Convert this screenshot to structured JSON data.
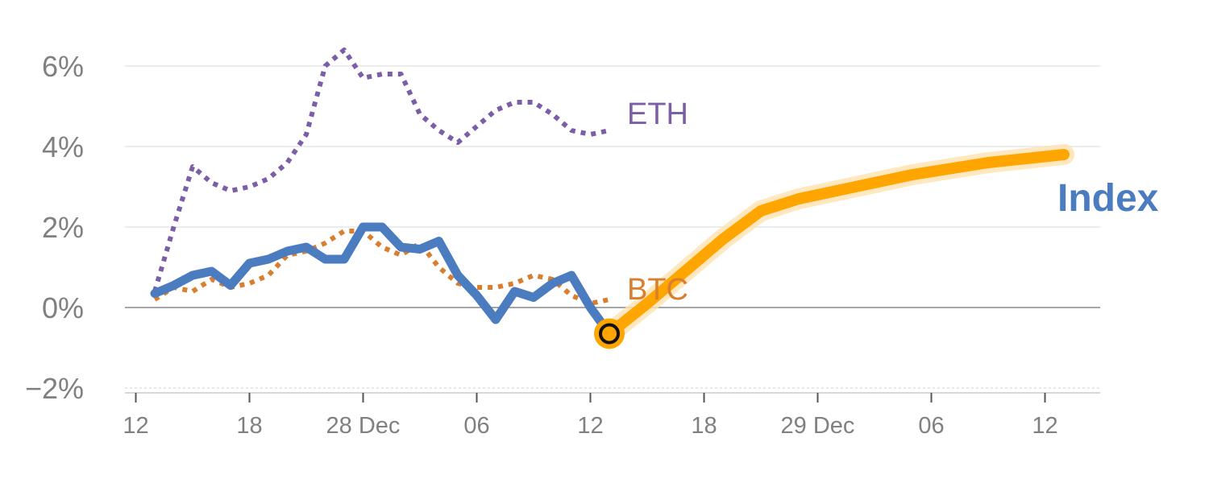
{
  "chart_data": {
    "type": "line",
    "y_unit": "%",
    "ylim": [
      -2,
      6.5
    ],
    "y_ticks": [
      {
        "value": 6,
        "label": "6%"
      },
      {
        "value": 4,
        "label": "4%"
      },
      {
        "value": 2,
        "label": "2%"
      },
      {
        "value": 0,
        "label": "0%"
      },
      {
        "value": -2,
        "label": "−2%"
      }
    ],
    "x_ticks": [
      {
        "step": 0,
        "label": "12"
      },
      {
        "step": 6,
        "label": "18"
      },
      {
        "step": 12,
        "label": "28 Dec"
      },
      {
        "step": 18,
        "label": "06"
      },
      {
        "step": 24,
        "label": "12"
      },
      {
        "step": 30,
        "label": "18"
      },
      {
        "step": 36,
        "label": "29 Dec"
      },
      {
        "step": 42,
        "label": "06"
      },
      {
        "step": 48,
        "label": "12"
      }
    ],
    "xlim": [
      -0.5,
      51
    ],
    "grid": true,
    "series": [
      {
        "name": "ETH",
        "style": "dotted",
        "color": "#7b5ea7",
        "x": [
          1,
          2,
          3,
          4,
          5,
          6,
          7,
          8,
          9,
          10,
          11,
          12,
          13,
          14,
          15,
          16,
          17,
          18,
          19,
          20,
          21,
          22,
          23,
          24,
          25
        ],
        "values": [
          0.4,
          2.0,
          3.5,
          3.1,
          2.9,
          3.0,
          3.2,
          3.6,
          4.3,
          6.0,
          6.4,
          5.7,
          5.8,
          5.8,
          4.8,
          4.4,
          4.1,
          4.5,
          4.9,
          5.1,
          5.1,
          4.8,
          4.4,
          4.3,
          4.4
        ]
      },
      {
        "name": "BTC",
        "style": "dotted",
        "color": "#d97e2e",
        "x": [
          1,
          2,
          3,
          4,
          5,
          6,
          7,
          8,
          9,
          10,
          11,
          12,
          13,
          14,
          15,
          16,
          17,
          18,
          19,
          20,
          21,
          22,
          23,
          24,
          25
        ],
        "values": [
          0.2,
          0.5,
          0.4,
          0.7,
          0.5,
          0.6,
          0.8,
          1.3,
          1.4,
          1.6,
          1.9,
          1.9,
          1.5,
          1.3,
          1.6,
          1.0,
          0.6,
          0.5,
          0.5,
          0.6,
          0.8,
          0.7,
          0.3,
          0.1,
          0.2
        ]
      },
      {
        "name": "Index",
        "style": "solid",
        "color": "#4a7cbf",
        "x": [
          1,
          2,
          3,
          4,
          5,
          6,
          7,
          8,
          9,
          10,
          11,
          12,
          13,
          14,
          15,
          16,
          17,
          18,
          19,
          20,
          21,
          22,
          23,
          24,
          25
        ],
        "values": [
          0.35,
          0.55,
          0.8,
          0.9,
          0.55,
          1.1,
          1.2,
          1.4,
          1.5,
          1.2,
          1.2,
          2.0,
          2.0,
          1.5,
          1.45,
          1.65,
          0.8,
          0.3,
          -0.3,
          0.4,
          0.25,
          0.6,
          0.8,
          0.0,
          -0.65
        ]
      }
    ],
    "forecast": {
      "color": "#ffa500",
      "x": [
        25,
        27,
        29,
        31,
        33,
        35,
        37,
        39,
        41,
        43,
        45,
        47,
        49
      ],
      "values": [
        -0.65,
        0.1,
        0.9,
        1.7,
        2.4,
        2.7,
        2.9,
        3.1,
        3.3,
        3.45,
        3.6,
        3.7,
        3.8
      ]
    },
    "highlight_point": {
      "x": 25,
      "value": -0.65
    },
    "labels": {
      "eth": "ETH",
      "btc": "BTC",
      "index": "Index"
    }
  }
}
